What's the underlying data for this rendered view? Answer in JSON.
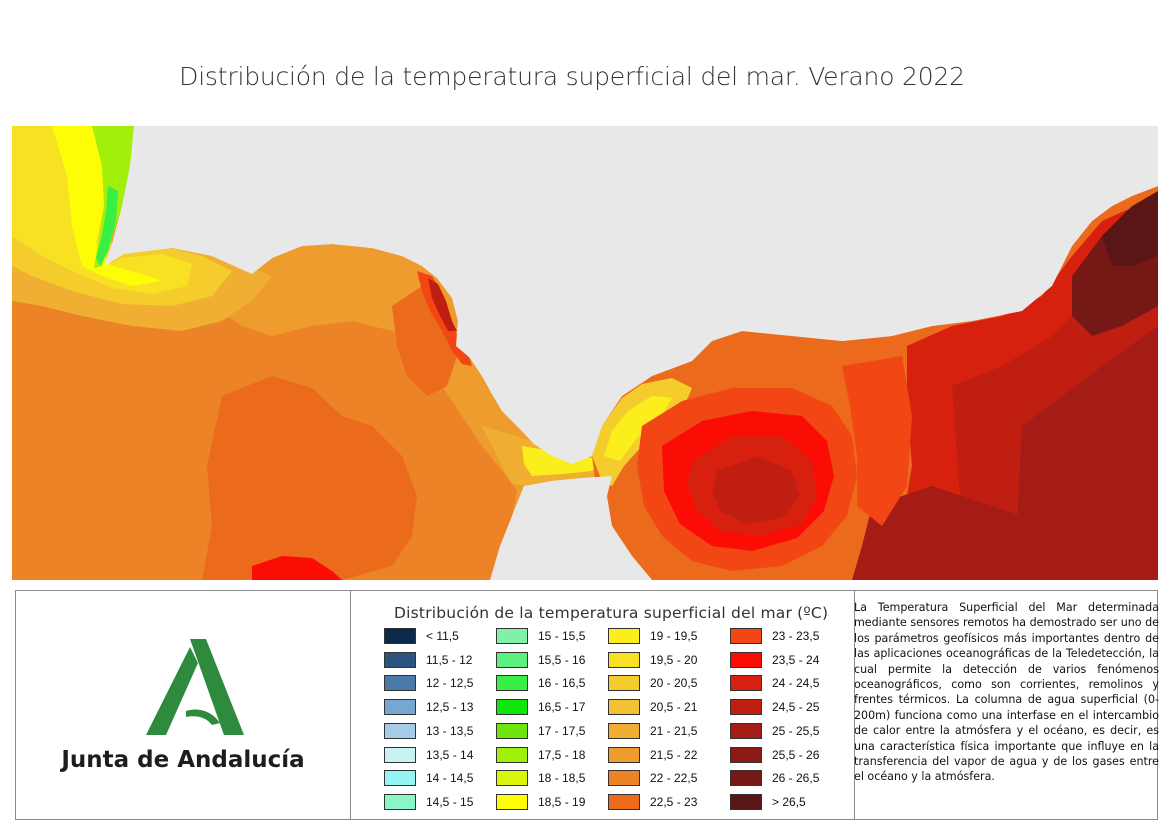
{
  "title": "Distribución de la temperatura superficial del mar. Verano 2022",
  "logo": {
    "text": "Junta de Andalucía"
  },
  "legend": {
    "title": "Distribución de la temperatura superficial del mar (ºC)",
    "items": [
      {
        "label": "< 11,5",
        "color": "#0b2a4a"
      },
      {
        "label": "11,5 - 12",
        "color": "#2b5580"
      },
      {
        "label": "12 - 12,5",
        "color": "#4a7aaa"
      },
      {
        "label": "12,5 - 13",
        "color": "#78a6d2"
      },
      {
        "label": "13 - 13,5",
        "color": "#a4cce6"
      },
      {
        "label": "13,5 - 14",
        "color": "#c9f3f3"
      },
      {
        "label": "14 - 14,5",
        "color": "#96f4f4"
      },
      {
        "label": "14,5 - 15",
        "color": "#8af6c7"
      },
      {
        "label": "15 - 15,5",
        "color": "#7ff2a8"
      },
      {
        "label": "15,5 - 16",
        "color": "#5ef07f"
      },
      {
        "label": "16 - 16,5",
        "color": "#39ee44"
      },
      {
        "label": "16,5 - 17",
        "color": "#11e60a"
      },
      {
        "label": "17 - 17,5",
        "color": "#6ee60d"
      },
      {
        "label": "17,5 - 18",
        "color": "#a2f00a"
      },
      {
        "label": "18 - 18,5",
        "color": "#d8f50a"
      },
      {
        "label": "18,5 - 19",
        "color": "#fdfd08"
      },
      {
        "label": "19 - 19,5",
        "color": "#fbee1d"
      },
      {
        "label": "19,5 - 20",
        "color": "#f8e023"
      },
      {
        "label": "20 - 20,5",
        "color": "#f4cd2c"
      },
      {
        "label": "20,5 - 21",
        "color": "#f2c136"
      },
      {
        "label": "21 - 21,5",
        "color": "#f0ae32"
      },
      {
        "label": "21,5 - 22",
        "color": "#ee9c2e"
      },
      {
        "label": "22 - 22,5",
        "color": "#ec8326"
      },
      {
        "label": "22,5 - 23",
        "color": "#ec6a1c"
      },
      {
        "label": "23 - 23,5",
        "color": "#f24714"
      },
      {
        "label": "23,5 - 24",
        "color": "#fb0d06"
      },
      {
        "label": "24 - 24,5",
        "color": "#d8200f"
      },
      {
        "label": "24,5 - 25",
        "color": "#c11e12"
      },
      {
        "label": "25 - 25,5",
        "color": "#a51b15"
      },
      {
        "label": "25,5 - 26",
        "color": "#8e1a16"
      },
      {
        "label": "26 - 26,5",
        "color": "#761816"
      },
      {
        "label": "> 26,5",
        "color": "#5a1616"
      }
    ]
  },
  "description": "La Temperatura Superficial del Mar determinada mediante sensores remotos ha demostrado ser uno de los parámetros geofísicos más importantes dentro de las aplicaciones oceanográficas de la Teledetección, la cual permite la detección de varios fenómenos oceanográficos, como son corrientes, remolinos y frentes térmicos. La columna de agua superficial (0-200m) funciona como una interfase en el intercambio de calor entre la atmósfera y el océano, es decir, es una característica física importante que influye en la transferencia del vapor de agua y de los gases entre el océano y la atmósfera.",
  "colors": {
    "land": "#e8e8e8",
    "border": "#8a8a8a",
    "logo_green": "#2e8b3e"
  }
}
